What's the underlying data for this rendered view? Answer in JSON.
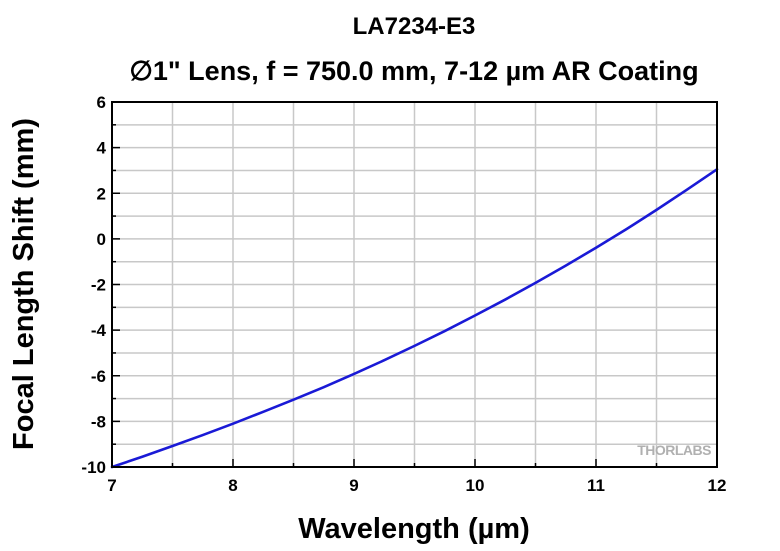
{
  "chart_data": {
    "type": "line",
    "title": "LA7234-E3",
    "subtitle": "∅1\" Lens, f = 750.0 mm, 7-12 µm AR Coating",
    "xlabel": "Wavelength (µm)",
    "ylabel": "Focal Length Shift (mm)",
    "xlim": [
      7,
      12
    ],
    "ylim": [
      -10,
      6
    ],
    "xticks": [
      "7",
      "8",
      "9",
      "10",
      "11",
      "12"
    ],
    "yticks": [
      "-10",
      "-8",
      "-6",
      "-4",
      "-2",
      "0",
      "2",
      "4",
      "6"
    ],
    "grid": true,
    "legend": "none",
    "series": [
      {
        "color": "#1a1ad6",
        "x": [
          7.0,
          7.25,
          7.5,
          7.75,
          8.0,
          8.25,
          8.5,
          8.75,
          9.0,
          9.25,
          9.5,
          9.75,
          10.0,
          10.25,
          10.5,
          10.75,
          11.0,
          11.25,
          11.5,
          11.75,
          12.0
        ],
        "y": [
          -10.0,
          -9.55,
          -9.08,
          -8.6,
          -8.1,
          -7.58,
          -7.05,
          -6.5,
          -5.92,
          -5.32,
          -4.69,
          -4.04,
          -3.36,
          -2.66,
          -1.93,
          -1.17,
          -0.39,
          0.42,
          1.27,
          2.15,
          3.05
        ]
      }
    ]
  },
  "watermark": {
    "text": "THORLABS",
    "color": "#b0b0b0"
  },
  "colors": {
    "grid": "#c8c8c8",
    "axis": "#000000",
    "line": "#1a1ad6"
  }
}
